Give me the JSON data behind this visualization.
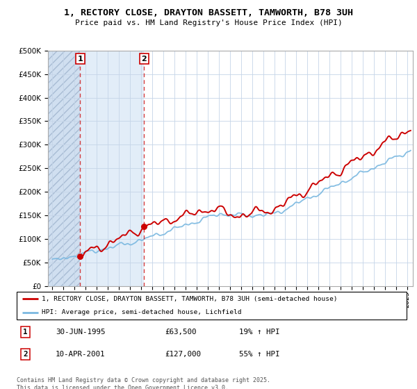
{
  "title": "1, RECTORY CLOSE, DRAYTON BASSETT, TAMWORTH, B78 3UH",
  "subtitle": "Price paid vs. HM Land Registry's House Price Index (HPI)",
  "sale1_date": 1995.5,
  "sale1_price": 63500,
  "sale2_date": 2001.27,
  "sale2_price": 127000,
  "hpi_color": "#7ab8e0",
  "price_color": "#cc0000",
  "legend_line1": "1, RECTORY CLOSE, DRAYTON BASSETT, TAMWORTH, B78 3UH (semi-detached house)",
  "legend_line2": "HPI: Average price, semi-detached house, Lichfield",
  "table_row1": [
    "1",
    "30-JUN-1995",
    "£63,500",
    "19% ↑ HPI"
  ],
  "table_row2": [
    "2",
    "10-APR-2001",
    "£127,000",
    "55% ↑ HPI"
  ],
  "footer": "Contains HM Land Registry data © Crown copyright and database right 2025.\nThis data is licensed under the Open Government Licence v3.0.",
  "ylim": [
    0,
    500000
  ],
  "xlim_start": 1992.6,
  "xlim_end": 2025.5,
  "hatch_region_end": 1995.5,
  "shade_region_end": 2001.27
}
